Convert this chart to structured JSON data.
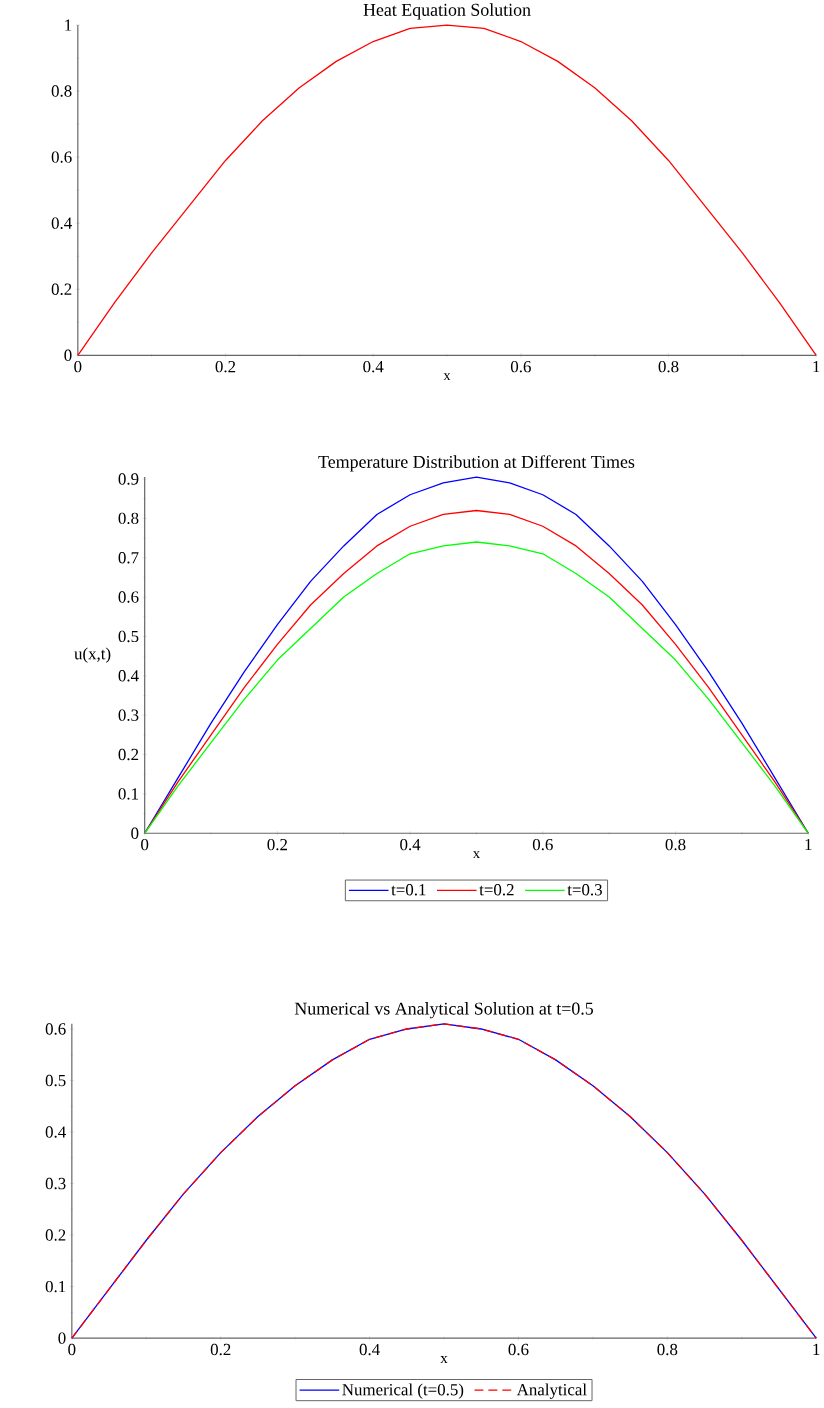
{
  "chart_data": [
    {
      "type": "line",
      "title": "Heat Equation Solution",
      "xlabel": "x",
      "x": [
        0,
        0.05,
        0.1,
        0.15,
        0.2,
        0.25,
        0.3,
        0.35,
        0.4,
        0.45,
        0.5,
        0.55,
        0.6,
        0.65,
        0.7,
        0.75,
        0.8,
        0.85,
        0.9,
        0.95,
        1
      ],
      "series": [
        {
          "color": "#ff0000",
          "values": [
            0,
            0.16,
            0.31,
            0.45,
            0.59,
            0.71,
            0.81,
            0.89,
            0.95,
            0.99,
            1,
            0.99,
            0.95,
            0.89,
            0.81,
            0.71,
            0.59,
            0.45,
            0.31,
            0.16,
            0
          ]
        }
      ],
      "xlim": [
        0,
        1
      ],
      "ylim": [
        0,
        1
      ],
      "xticks": [
        0,
        0.2,
        0.4,
        0.6,
        0.8,
        1
      ],
      "yticks": [
        0,
        0.2,
        0.4,
        0.6,
        0.8,
        1
      ],
      "marker": "none"
    },
    {
      "type": "line",
      "title": "Temperature Distribution at Different Times",
      "xlabel": "x",
      "ylabel": "u(x,t)",
      "x": [
        0,
        0.05,
        0.1,
        0.15,
        0.2,
        0.25,
        0.3,
        0.35,
        0.4,
        0.45,
        0.5,
        0.55,
        0.6,
        0.65,
        0.7,
        0.75,
        0.8,
        0.85,
        0.9,
        0.95,
        1
      ],
      "series": [
        {
          "name": "t=0.1",
          "color": "#0000ff",
          "values": [
            0,
            0.14,
            0.28,
            0.41,
            0.53,
            0.64,
            0.73,
            0.81,
            0.86,
            0.89,
            0.905,
            0.89,
            0.86,
            0.81,
            0.73,
            0.64,
            0.53,
            0.41,
            0.28,
            0.14,
            0
          ]
        },
        {
          "name": "t=0.2",
          "color": "#ff0000",
          "values": [
            0,
            0.13,
            0.25,
            0.37,
            0.48,
            0.58,
            0.66,
            0.73,
            0.78,
            0.81,
            0.82,
            0.81,
            0.78,
            0.73,
            0.66,
            0.58,
            0.48,
            0.37,
            0.25,
            0.13,
            0
          ]
        },
        {
          "name": "t=0.3",
          "color": "#00ff00",
          "values": [
            0,
            0.12,
            0.23,
            0.34,
            0.44,
            0.52,
            0.6,
            0.66,
            0.71,
            0.73,
            0.74,
            0.73,
            0.71,
            0.66,
            0.6,
            0.52,
            0.44,
            0.34,
            0.23,
            0.12,
            0
          ]
        }
      ],
      "xlim": [
        0,
        1
      ],
      "ylim": [
        0,
        0.905
      ],
      "xticks": [
        0,
        0.2,
        0.4,
        0.6,
        0.8,
        1
      ],
      "yticks": [
        0,
        0.1,
        0.2,
        0.3,
        0.4,
        0.5,
        0.6,
        0.7,
        0.8,
        0.9
      ],
      "legend": "bottom",
      "marker": "none"
    },
    {
      "type": "line",
      "title": "Numerical vs Analytical Solution at t=0.5",
      "xlabel": "x",
      "x": [
        0,
        0.05,
        0.1,
        0.15,
        0.2,
        0.25,
        0.3,
        0.35,
        0.4,
        0.45,
        0.5,
        0.55,
        0.6,
        0.65,
        0.7,
        0.75,
        0.8,
        0.85,
        0.9,
        0.95,
        1
      ],
      "series": [
        {
          "name": "Numerical (t=0.5)",
          "color": "#0000ff",
          "values": [
            0,
            0.095,
            0.19,
            0.28,
            0.36,
            0.43,
            0.49,
            0.54,
            0.58,
            0.6,
            0.61,
            0.6,
            0.58,
            0.54,
            0.49,
            0.43,
            0.36,
            0.28,
            0.19,
            0.095,
            0
          ]
        },
        {
          "name": "Analytical",
          "color": "#ff0000",
          "line_style": "dashed",
          "values": [
            0,
            0.095,
            0.19,
            0.28,
            0.36,
            0.43,
            0.49,
            0.54,
            0.58,
            0.6,
            0.61,
            0.6,
            0.58,
            0.54,
            0.49,
            0.43,
            0.36,
            0.28,
            0.19,
            0.095,
            0
          ]
        }
      ],
      "xlim": [
        0,
        1
      ],
      "ylim": [
        0,
        0.61
      ],
      "xticks": [
        0,
        0.2,
        0.4,
        0.6,
        0.8,
        1
      ],
      "yticks": [
        0,
        0.1,
        0.2,
        0.3,
        0.4,
        0.5,
        0.6
      ],
      "legend": "bottom",
      "marker": "none"
    }
  ]
}
